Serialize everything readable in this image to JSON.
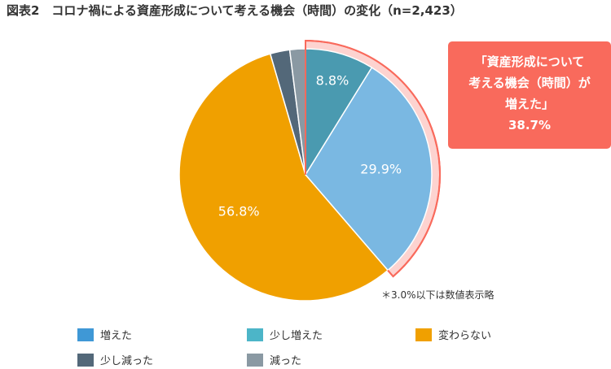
{
  "chart_data": {
    "type": "pie",
    "title": "図表2　コロナ禍による資産形成について考える機会（時間）の変化（n=2,423）",
    "slices": [
      {
        "name": "増えた",
        "value": 8.8,
        "label": "8.8%",
        "color": "#4a9ab0"
      },
      {
        "name": "少し増えた",
        "value": 29.9,
        "label": "29.9%",
        "color": "#7ab8e2"
      },
      {
        "name": "変わらない",
        "value": 56.8,
        "label": "56.8%",
        "color": "#f0a000"
      },
      {
        "name": "少し減った",
        "value": 2.5,
        "label": "",
        "color": "#536879"
      },
      {
        "name": "減った",
        "value": 2.0,
        "label": "",
        "color": "#8a99a3"
      }
    ],
    "legend": [
      {
        "name": "増えた",
        "color": "#3f98d6"
      },
      {
        "name": "少し増えた",
        "color": "#4cb5c8"
      },
      {
        "name": "変わらない",
        "color": "#f0a000"
      },
      {
        "name": "少し減った",
        "color": "#536879"
      },
      {
        "name": "減った",
        "color": "#8a99a3"
      }
    ],
    "highlight": {
      "lines": [
        "「資産形成について",
        "考える機会（時間）が",
        "増えた」",
        "38.7%"
      ],
      "value": 38.7,
      "color": "#f96a5c"
    },
    "note": "＊3.0%以下は数値表示略"
  }
}
